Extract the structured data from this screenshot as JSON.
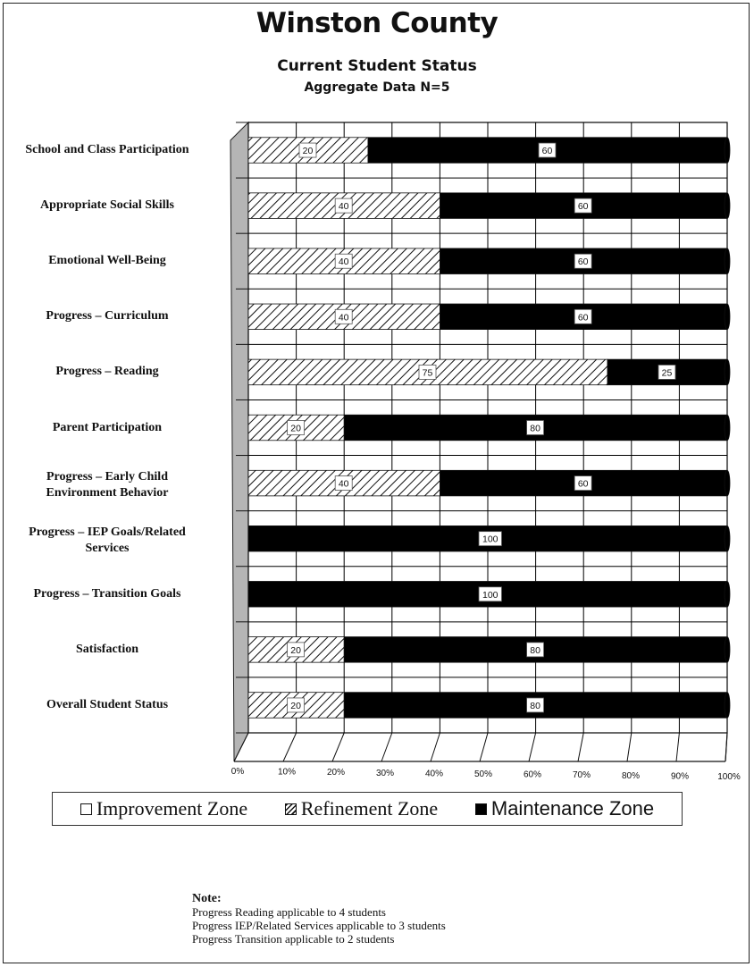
{
  "chart_data": {
    "type": "bar",
    "orientation": "horizontal",
    "stacked": "100%",
    "title": "Winston County",
    "subtitle": "Current Student Status",
    "subtitle2": "Aggregate Data N=5",
    "categories": [
      "School and Class Participation",
      "Appropriate Social Skills",
      "Emotional Well-Being",
      "Progress – Curriculum",
      "Progress – Reading",
      "Parent Participation",
      "Progress – Early Child Environment Behavior",
      "Progress – IEP Goals/Related Services",
      "Progress – Transition Goals",
      "Satisfaction",
      "Overall Student Status"
    ],
    "category_lines": [
      [
        "School and Class Participation"
      ],
      [
        "Appropriate Social Skills"
      ],
      [
        "Emotional Well-Being"
      ],
      [
        "Progress – Curriculum"
      ],
      [
        "Progress – Reading"
      ],
      [
        "Parent Participation"
      ],
      [
        "Progress – Early Child",
        "Environment Behavior"
      ],
      [
        "Progress – IEP Goals/Related",
        "Services"
      ],
      [
        "Progress – Transition Goals"
      ],
      [
        "Satisfaction"
      ],
      [
        "Overall Student Status"
      ]
    ],
    "series": [
      {
        "name": "Improvement Zone",
        "values": [
          0,
          0,
          0,
          0,
          0,
          0,
          0,
          0,
          0,
          0,
          0
        ],
        "fill": "white"
      },
      {
        "name": "Refinement Zone",
        "values": [
          20,
          40,
          40,
          40,
          75,
          20,
          40,
          0,
          0,
          20,
          20
        ],
        "fill": "hatch"
      },
      {
        "name": "Maintenance Zone",
        "values": [
          60,
          60,
          60,
          60,
          25,
          80,
          60,
          100,
          100,
          80,
          80
        ],
        "fill": "black"
      }
    ],
    "x_ticks": [
      "0%",
      "10%",
      "20%",
      "30%",
      "40%",
      "50%",
      "60%",
      "70%",
      "80%",
      "90%",
      "100%"
    ],
    "xlim": [
      0,
      100
    ],
    "grid": true,
    "legend_position": "bottom"
  },
  "colors": {
    "maintenance": "#000000",
    "wall": "#b5b5b5",
    "grid": "#000000"
  },
  "note": {
    "heading": "Note:",
    "lines": [
      "Progress Reading applicable to 4 students",
      "Progress IEP/Related Services applicable to 3 students",
      "Progress Transition applicable to 2 students"
    ]
  }
}
